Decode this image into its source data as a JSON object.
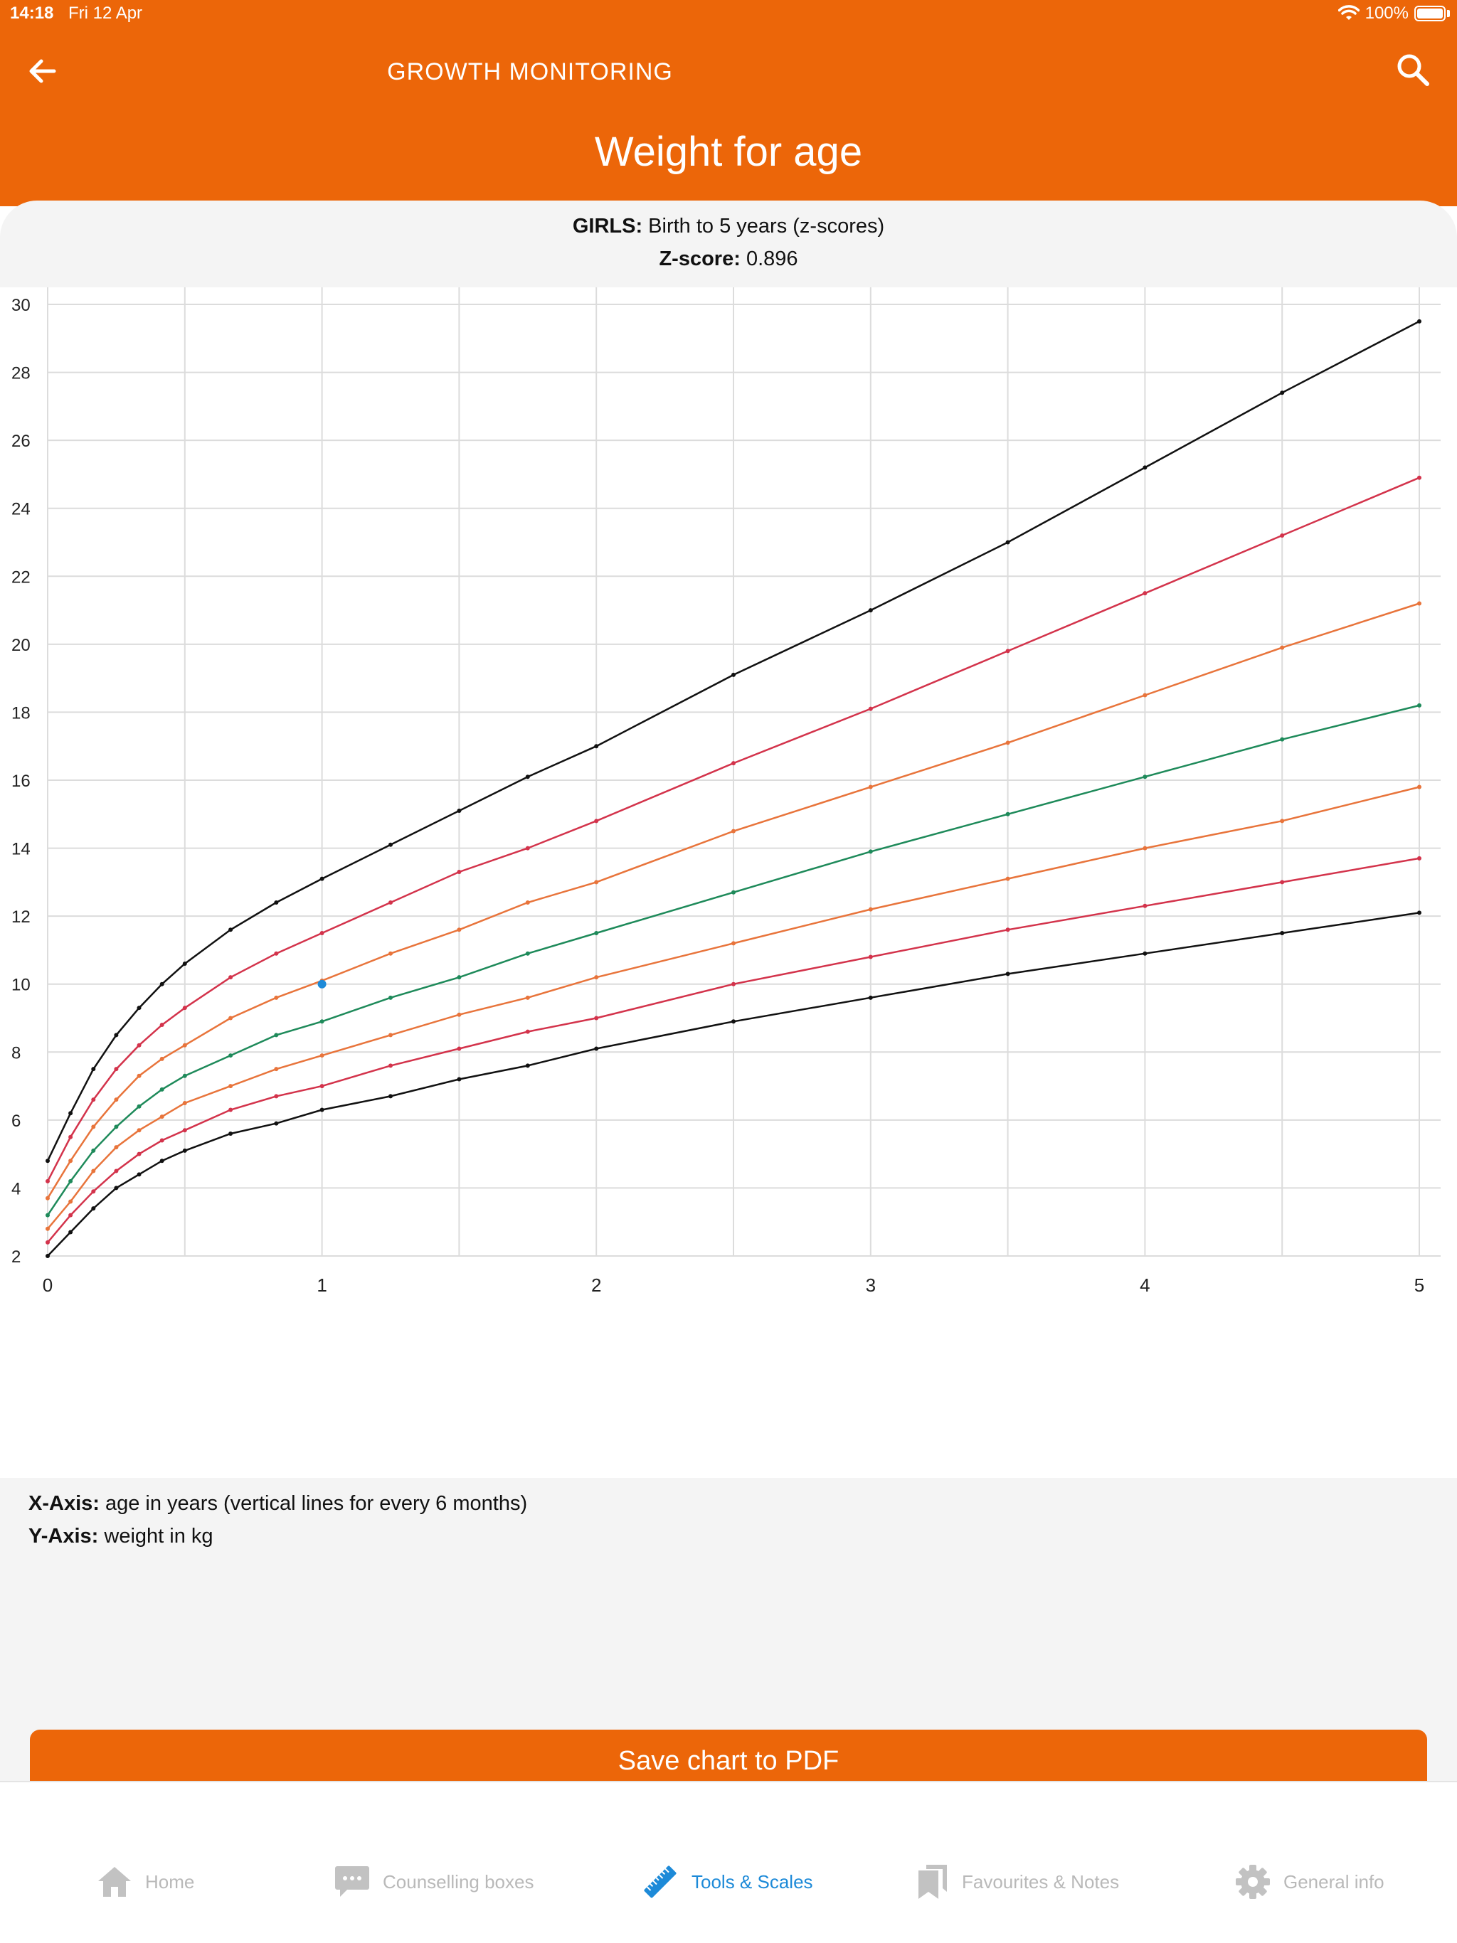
{
  "status_bar": {
    "time": "14:18",
    "date": "Fri 12 Apr",
    "battery": "100%"
  },
  "nav": {
    "title": "GROWTH MONITORING"
  },
  "page_title": "Weight for age",
  "subtitle": {
    "bold": "GIRLS:",
    "text": "Birth to 5 years (z-scores)"
  },
  "zscore": {
    "label": "Z-score:",
    "value": "0.896"
  },
  "axis_notes": {
    "x_label": "X-Axis:",
    "x_text": "age in years (vertical lines for every 6 months)",
    "y_label": "Y-Axis:",
    "y_text": "weight in kg"
  },
  "save_button": "Save chart to PDF",
  "tabs": [
    {
      "label": "Home",
      "icon": "home-icon",
      "active": false
    },
    {
      "label": "Counselling boxes",
      "icon": "chat-icon",
      "active": false
    },
    {
      "label": "Tools & Scales",
      "icon": "ruler-icon",
      "active": true
    },
    {
      "label": "Favourites & Notes",
      "icon": "bookmarks-icon",
      "active": false
    },
    {
      "label": "General info",
      "icon": "gear-icon",
      "active": false
    }
  ],
  "colors": {
    "brand": "#ec6609",
    "active_tab": "#1d8ad8",
    "sd3": "#111111",
    "sd2": "#d3334b",
    "sd1": "#e8743b",
    "median": "#1e8a5a",
    "point": "#1d8ad8"
  },
  "chart_data": {
    "type": "line",
    "x_ticks": [
      "0",
      "1",
      "2",
      "3",
      "4",
      "5"
    ],
    "y_ticks": [
      "2",
      "4",
      "6",
      "8",
      "10",
      "12",
      "14",
      "16",
      "18",
      "20",
      "22",
      "24",
      "26",
      "28",
      "30"
    ],
    "xlim": [
      0,
      5
    ],
    "ylim": [
      2,
      30
    ],
    "grid": true,
    "vertical_grid_every_years": 0.5,
    "x": [
      0,
      0.0833,
      0.1667,
      0.25,
      0.3333,
      0.4167,
      0.5,
      0.6667,
      0.8333,
      1,
      1.25,
      1.5,
      1.75,
      2,
      2.5,
      3,
      3.5,
      4,
      4.5,
      5
    ],
    "series": [
      {
        "color": "#111111",
        "values": [
          2.0,
          2.7,
          3.4,
          4.0,
          4.4,
          4.8,
          5.1,
          5.6,
          5.9,
          6.3,
          6.7,
          7.2,
          7.6,
          8.1,
          8.9,
          9.6,
          10.3,
          10.9,
          11.5,
          12.1
        ]
      },
      {
        "color": "#d3334b",
        "values": [
          2.4,
          3.2,
          3.9,
          4.5,
          5.0,
          5.4,
          5.7,
          6.3,
          6.7,
          7.0,
          7.6,
          8.1,
          8.6,
          9.0,
          10.0,
          10.8,
          11.6,
          12.3,
          13.0,
          13.7
        ]
      },
      {
        "color": "#e8743b",
        "values": [
          2.8,
          3.6,
          4.5,
          5.2,
          5.7,
          6.1,
          6.5,
          7.0,
          7.5,
          7.9,
          8.5,
          9.1,
          9.6,
          10.2,
          11.2,
          12.2,
          13.1,
          14.0,
          14.8,
          15.8
        ]
      },
      {
        "color": "#1e8a5a",
        "values": [
          3.2,
          4.2,
          5.1,
          5.8,
          6.4,
          6.9,
          7.3,
          7.9,
          8.5,
          8.9,
          9.6,
          10.2,
          10.9,
          11.5,
          12.7,
          13.9,
          15.0,
          16.1,
          17.2,
          18.2
        ]
      },
      {
        "color": "#e8743b",
        "values": [
          3.7,
          4.8,
          5.8,
          6.6,
          7.3,
          7.8,
          8.2,
          9.0,
          9.6,
          10.1,
          10.9,
          11.6,
          12.4,
          13.0,
          14.5,
          15.8,
          17.1,
          18.5,
          19.9,
          21.2
        ]
      },
      {
        "color": "#d3334b",
        "values": [
          4.2,
          5.5,
          6.6,
          7.5,
          8.2,
          8.8,
          9.3,
          10.2,
          10.9,
          11.5,
          12.4,
          13.3,
          14.0,
          14.8,
          16.5,
          18.1,
          19.8,
          21.5,
          23.2,
          24.9
        ]
      },
      {
        "color": "#111111",
        "values": [
          4.8,
          6.2,
          7.5,
          8.5,
          9.3,
          10.0,
          10.6,
          11.6,
          12.4,
          13.1,
          14.1,
          15.1,
          16.1,
          17.0,
          19.1,
          21.0,
          23.0,
          25.2,
          27.4,
          29.5
        ]
      }
    ],
    "measurement": {
      "x": 1.0,
      "y": 10.0,
      "color": "#1d8ad8"
    }
  }
}
